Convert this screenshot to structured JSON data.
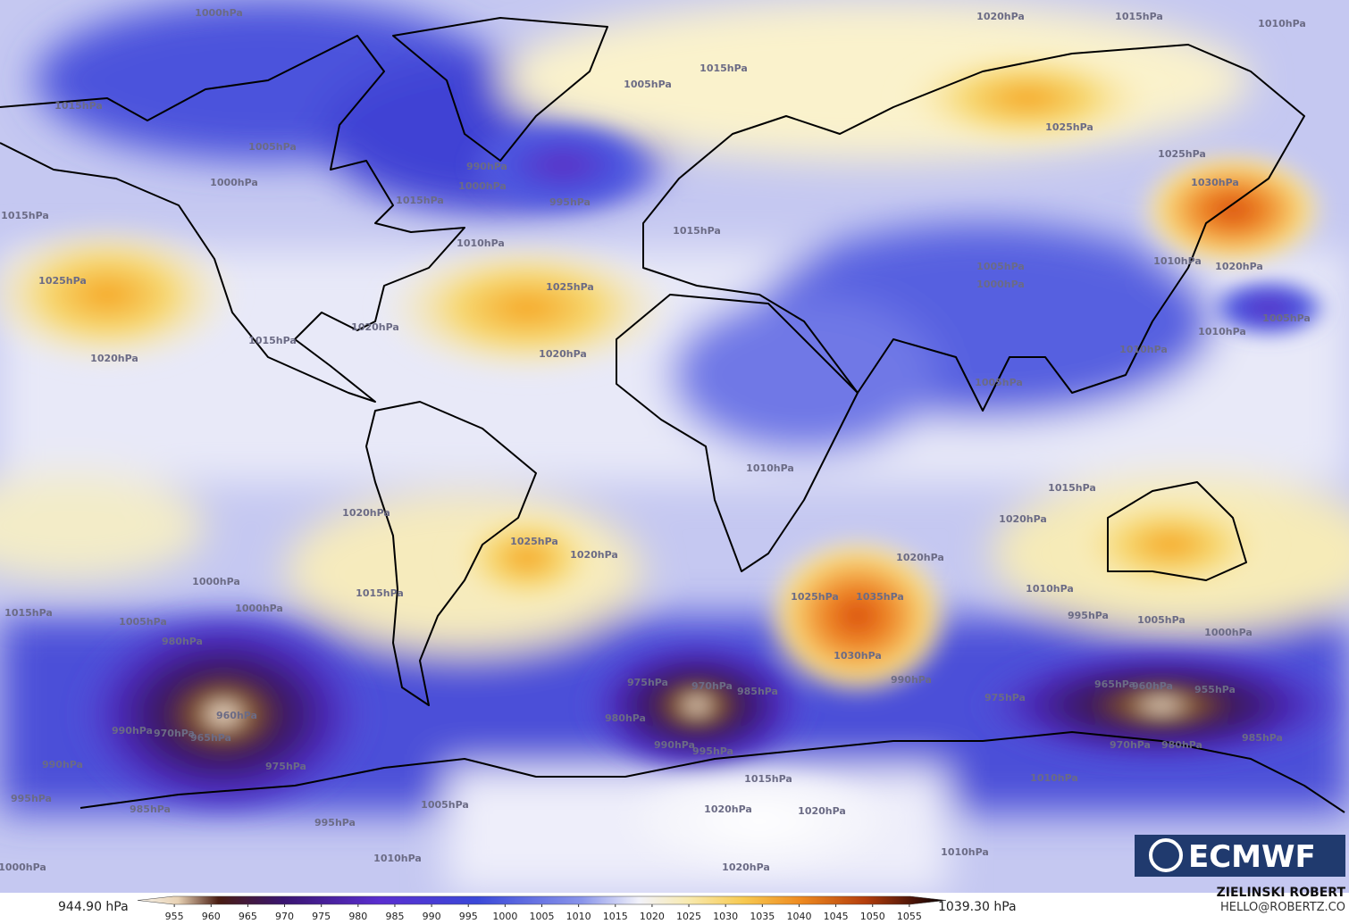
{
  "contour_labels": [
    "1000hPa",
    "1020hPa",
    "1015hPa",
    "1010hPa",
    "1015hPa",
    "1005hPa",
    "1015hPa",
    "1025hPa",
    "1005hPa",
    "990hPa",
    "1025hPa",
    "1000hPa",
    "1000hPa",
    "995hPa",
    "1030hPa",
    "1015hPa",
    "1015hPa",
    "1010hPa",
    "1015hPa",
    "1010hPa",
    "1020hPa",
    "1025hPa",
    "1025hPa",
    "1005hPa",
    "1000hPa",
    "1005hPa",
    "1020hPa",
    "1010hPa",
    "1010hPa",
    "1020hPa",
    "1020hPa",
    "1015hPa",
    "1005hPa",
    "1010hPa",
    "1015hPa",
    "1020hPa",
    "1020hPa",
    "1025hPa",
    "1020hPa",
    "1020hPa",
    "1015hPa",
    "1010hPa",
    "1000hPa",
    "1000hPa",
    "1015hPa",
    "1025hPa",
    "1035hPa",
    "995hPa",
    "1005hPa",
    "1000hPa",
    "1005hPa",
    "980hPa",
    "1030hPa",
    "975hPa",
    "970hPa",
    "985hPa",
    "990hPa",
    "975hPa",
    "965hPa",
    "960hPa",
    "955hPa",
    "960hPa",
    "970hPa",
    "965hPa",
    "990hPa",
    "980hPa",
    "990hPa",
    "995hPa",
    "970hPa",
    "980hPa",
    "985hPa",
    "990hPa",
    "975hPa",
    "1015hPa",
    "1010hPa",
    "995hPa",
    "985hPa",
    "1005hPa",
    "1020hPa",
    "1020hPa",
    "995hPa",
    "1010hPa",
    "1010hPa",
    "1020hPa",
    "1000hPa"
  ],
  "colorbar": {
    "min_label": "944.90 hPa",
    "max_label": "1039.30 hPa",
    "range": [
      950,
      1060
    ],
    "ticks": [
      955,
      960,
      965,
      970,
      975,
      980,
      985,
      990,
      995,
      1000,
      1005,
      1010,
      1015,
      1020,
      1025,
      1030,
      1035,
      1040,
      1045,
      1050,
      1055
    ]
  },
  "logo": "ECMWF",
  "credit": {
    "name": "ZIELINSKI ROBERT",
    "email": "HELLO@ROBERTZ.CO"
  }
}
